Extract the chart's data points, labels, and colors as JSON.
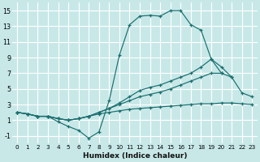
{
  "bg_color": "#c8e8e8",
  "grid_color": "#ffffff",
  "line_color": "#1a6e6e",
  "xlabel": "Humidex (Indice chaleur)",
  "xlim": [
    -0.5,
    23.5
  ],
  "ylim": [
    -2.0,
    16.0
  ],
  "yticks": [
    -1,
    1,
    3,
    5,
    7,
    9,
    11,
    13,
    15
  ],
  "lines": [
    {
      "x": [
        0,
        1,
        2,
        3,
        4,
        5,
        6,
        7,
        8,
        9,
        10,
        11,
        12,
        13,
        14,
        15,
        16,
        17,
        18,
        19,
        20
      ],
      "y": [
        2.0,
        1.8,
        1.5,
        1.5,
        0.8,
        0.2,
        -0.3,
        -1.3,
        -0.5,
        3.5,
        9.3,
        13.2,
        14.3,
        14.4,
        14.3,
        15.0,
        15.0,
        13.2,
        12.5,
        8.8,
        7.0
      ]
    },
    {
      "x": [
        0,
        1,
        2,
        3,
        4,
        5,
        6,
        7,
        8,
        9,
        10,
        11,
        12,
        13,
        14,
        15,
        16,
        17,
        18,
        19,
        20,
        21
      ],
      "y": [
        2.0,
        1.8,
        1.5,
        1.5,
        1.2,
        1.0,
        1.2,
        1.5,
        2.0,
        2.5,
        3.2,
        4.0,
        4.8,
        5.2,
        5.5,
        6.0,
        6.5,
        7.0,
        7.8,
        8.8,
        7.8,
        6.5
      ]
    },
    {
      "x": [
        0,
        1,
        2,
        3,
        4,
        5,
        6,
        7,
        8,
        9,
        10,
        11,
        12,
        13,
        14,
        15,
        16,
        17,
        18,
        19,
        20,
        21,
        22,
        23
      ],
      "y": [
        2.0,
        1.8,
        1.5,
        1.5,
        1.2,
        1.0,
        1.2,
        1.5,
        2.0,
        2.5,
        3.0,
        3.5,
        4.0,
        4.3,
        4.6,
        5.0,
        5.5,
        6.0,
        6.5,
        7.0,
        7.0,
        6.5,
        4.5,
        4.0
      ]
    },
    {
      "x": [
        0,
        1,
        2,
        3,
        4,
        5,
        6,
        7,
        8,
        9,
        10,
        11,
        12,
        13,
        14,
        15,
        16,
        17,
        18,
        19,
        20,
        21,
        22,
        23
      ],
      "y": [
        2.0,
        1.8,
        1.5,
        1.5,
        1.2,
        1.0,
        1.2,
        1.5,
        1.8,
        2.0,
        2.2,
        2.4,
        2.5,
        2.6,
        2.7,
        2.8,
        2.9,
        3.0,
        3.1,
        3.1,
        3.2,
        3.2,
        3.1,
        3.0
      ]
    }
  ]
}
